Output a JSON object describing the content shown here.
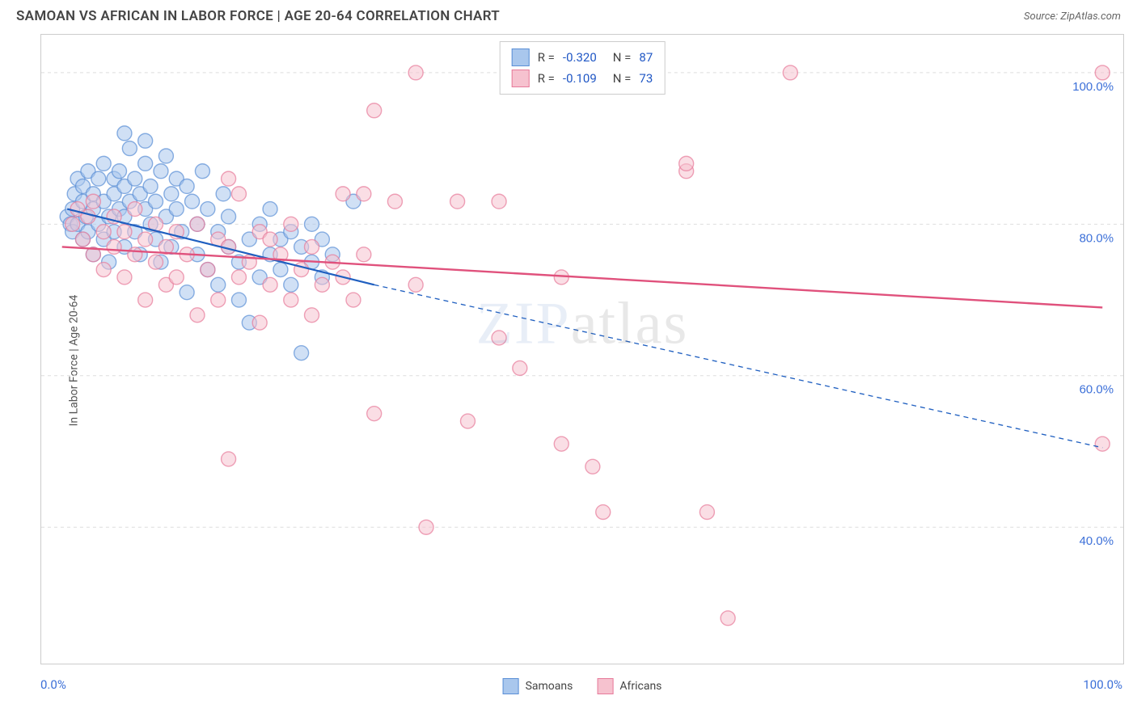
{
  "title": "SAMOAN VS AFRICAN IN LABOR FORCE | AGE 20-64 CORRELATION CHART",
  "source": "Source: ZipAtlas.com",
  "watermark_a": "ZIP",
  "watermark_b": "atlas",
  "y_axis_label": "In Labor Force | Age 20-64",
  "chart": {
    "type": "scatter",
    "background_color": "#ffffff",
    "border_color": "#cccccc",
    "grid_color": "#dddddd",
    "grid_dash": "4,4",
    "xlim": [
      -2,
      102
    ],
    "ylim": [
      22,
      105
    ],
    "x_ticks": [
      0,
      12,
      24,
      36,
      48,
      60,
      72,
      96,
      100
    ],
    "x_tick_labels_shown": {
      "0": "0.0%",
      "100": "100.0%"
    },
    "y_grid": [
      40,
      60,
      80,
      100
    ],
    "y_tick_labels": {
      "40": "40.0%",
      "60": "60.0%",
      "80": "80.0%",
      "100": "100.0%"
    },
    "y_tick_color": "#3b6fd8",
    "y_tick_fontsize": 15,
    "marker_radius": 9,
    "marker_opacity": 0.55,
    "marker_stroke_width": 1.4,
    "series": [
      {
        "name": "Samoans",
        "fill_color": "#a9c7ed",
        "stroke_color": "#5a8fd6",
        "R": "-0.320",
        "N": "87",
        "trend": {
          "color": "#1f5fc0",
          "width": 2.2,
          "solid_from": [
            0.5,
            82
          ],
          "solid_to": [
            30,
            72
          ],
          "dashed_to": [
            100,
            50.5
          ],
          "dash": "6,5"
        },
        "points": [
          [
            0.5,
            81
          ],
          [
            0.8,
            80
          ],
          [
            1,
            82
          ],
          [
            1,
            79
          ],
          [
            1.2,
            84
          ],
          [
            1.5,
            86
          ],
          [
            1.5,
            80
          ],
          [
            2,
            78
          ],
          [
            2,
            83
          ],
          [
            2,
            85
          ],
          [
            2.3,
            81
          ],
          [
            2.5,
            87
          ],
          [
            2.5,
            79
          ],
          [
            3,
            84
          ],
          [
            3,
            76
          ],
          [
            3,
            82
          ],
          [
            3.5,
            86
          ],
          [
            3.5,
            80
          ],
          [
            4,
            78
          ],
          [
            4,
            83
          ],
          [
            4,
            88
          ],
          [
            4.5,
            81
          ],
          [
            4.5,
            75
          ],
          [
            5,
            86
          ],
          [
            5,
            84
          ],
          [
            5,
            79
          ],
          [
            5.5,
            82
          ],
          [
            5.5,
            87
          ],
          [
            6,
            77
          ],
          [
            6,
            85
          ],
          [
            6,
            81
          ],
          [
            6.5,
            90
          ],
          [
            6.5,
            83
          ],
          [
            7,
            79
          ],
          [
            7,
            86
          ],
          [
            7.5,
            84
          ],
          [
            7.5,
            76
          ],
          [
            8,
            82
          ],
          [
            8,
            88
          ],
          [
            8.5,
            80
          ],
          [
            8.5,
            85
          ],
          [
            9,
            78
          ],
          [
            9,
            83
          ],
          [
            9.5,
            87
          ],
          [
            9.5,
            75
          ],
          [
            10,
            89
          ],
          [
            10,
            81
          ],
          [
            10.5,
            84
          ],
          [
            10.5,
            77
          ],
          [
            11,
            86
          ],
          [
            11,
            82
          ],
          [
            11.5,
            79
          ],
          [
            12,
            85
          ],
          [
            12,
            71
          ],
          [
            12.5,
            83
          ],
          [
            13,
            76
          ],
          [
            13,
            80
          ],
          [
            13.5,
            87
          ],
          [
            14,
            74
          ],
          [
            14,
            82
          ],
          [
            15,
            79
          ],
          [
            15,
            72
          ],
          [
            15.5,
            84
          ],
          [
            16,
            77
          ],
          [
            16,
            81
          ],
          [
            17,
            75
          ],
          [
            17,
            70
          ],
          [
            18,
            78
          ],
          [
            18,
            67
          ],
          [
            19,
            73
          ],
          [
            19,
            80
          ],
          [
            20,
            76
          ],
          [
            20,
            82
          ],
          [
            21,
            74
          ],
          [
            21,
            78
          ],
          [
            22,
            79
          ],
          [
            22,
            72
          ],
          [
            23,
            77
          ],
          [
            23,
            63
          ],
          [
            24,
            80
          ],
          [
            24,
            75
          ],
          [
            25,
            78
          ],
          [
            25,
            73
          ],
          [
            26,
            76
          ],
          [
            28,
            83
          ],
          [
            6,
            92
          ],
          [
            8,
            91
          ]
        ]
      },
      {
        "name": "Africans",
        "fill_color": "#f6c2cf",
        "stroke_color": "#e77a9a",
        "R": "-0.109",
        "N": "73",
        "trend": {
          "color": "#e0517c",
          "width": 2.4,
          "solid_from": [
            0,
            77
          ],
          "solid_to": [
            100,
            69
          ],
          "dashed_to": null,
          "dash": null
        },
        "points": [
          [
            1,
            80
          ],
          [
            1.5,
            82
          ],
          [
            2,
            78
          ],
          [
            2.5,
            81
          ],
          [
            3,
            76
          ],
          [
            3,
            83
          ],
          [
            4,
            79
          ],
          [
            4,
            74
          ],
          [
            5,
            77
          ],
          [
            5,
            81
          ],
          [
            6,
            73
          ],
          [
            6,
            79
          ],
          [
            7,
            76
          ],
          [
            7,
            82
          ],
          [
            8,
            70
          ],
          [
            8,
            78
          ],
          [
            9,
            75
          ],
          [
            9,
            80
          ],
          [
            10,
            72
          ],
          [
            10,
            77
          ],
          [
            11,
            79
          ],
          [
            11,
            73
          ],
          [
            12,
            76
          ],
          [
            13,
            80
          ],
          [
            13,
            68
          ],
          [
            14,
            74
          ],
          [
            15,
            78
          ],
          [
            15,
            70
          ],
          [
            16,
            77
          ],
          [
            16,
            86
          ],
          [
            17,
            73
          ],
          [
            17,
            84
          ],
          [
            18,
            75
          ],
          [
            19,
            79
          ],
          [
            19,
            67
          ],
          [
            20,
            72
          ],
          [
            20,
            78
          ],
          [
            21,
            76
          ],
          [
            22,
            70
          ],
          [
            22,
            80
          ],
          [
            23,
            74
          ],
          [
            24,
            77
          ],
          [
            24,
            68
          ],
          [
            25,
            72
          ],
          [
            26,
            75
          ],
          [
            27,
            73
          ],
          [
            27,
            84
          ],
          [
            28,
            70
          ],
          [
            29,
            76
          ],
          [
            29,
            84
          ],
          [
            30,
            55
          ],
          [
            30,
            95
          ],
          [
            32,
            83
          ],
          [
            34,
            100
          ],
          [
            34,
            72
          ],
          [
            35,
            40
          ],
          [
            38,
            83
          ],
          [
            39,
            54
          ],
          [
            42,
            83
          ],
          [
            42,
            65
          ],
          [
            44,
            61
          ],
          [
            48,
            51
          ],
          [
            48,
            73
          ],
          [
            51,
            48
          ],
          [
            52,
            42
          ],
          [
            60,
            87
          ],
          [
            60,
            88
          ],
          [
            62,
            42
          ],
          [
            64,
            28
          ],
          [
            70,
            100
          ],
          [
            100,
            100
          ],
          [
            100,
            51
          ],
          [
            16,
            49
          ]
        ]
      }
    ]
  },
  "legend": {
    "series1": "Samoans",
    "series2": "Africans"
  }
}
